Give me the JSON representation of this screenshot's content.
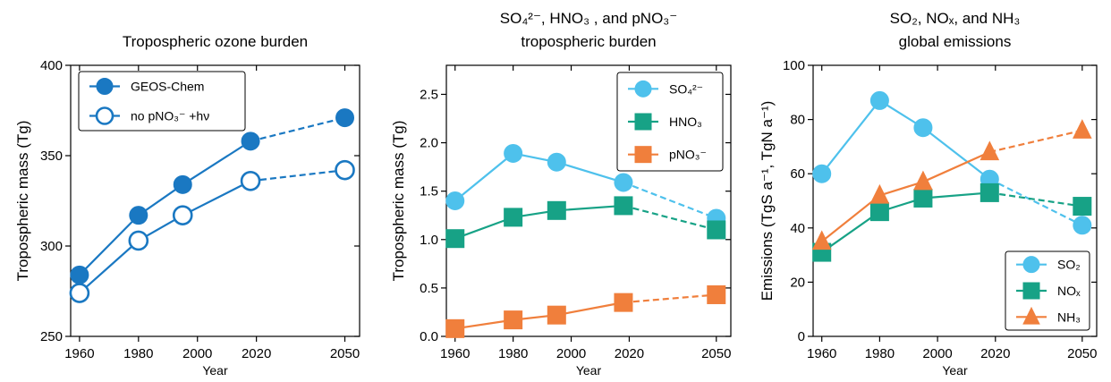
{
  "chart_data": [
    {
      "type": "line",
      "title": "Tropospheric ozone burden",
      "xlabel": "Year",
      "ylabel": "Tropospheric mass (Tg)",
      "xlim": [
        1957,
        2055
      ],
      "ylim": [
        250,
        400
      ],
      "xticks": [
        1960,
        1980,
        2000,
        2020,
        2050
      ],
      "yticks": [
        250,
        300,
        350,
        400
      ],
      "legend_position": "top-left",
      "dash_from": 2018,
      "series": [
        {
          "name": "GEOS-Chem",
          "color": "#1a78c2",
          "marker": "circle",
          "filled": true,
          "x": [
            1960,
            1980,
            1995,
            2018,
            2050
          ],
          "y": [
            284,
            317,
            334,
            358,
            371
          ]
        },
        {
          "name": "no pNO₃⁻ +hν",
          "color": "#1a78c2",
          "marker": "circle",
          "filled": false,
          "x": [
            1960,
            1980,
            1995,
            2018,
            2050
          ],
          "y": [
            274,
            303,
            317,
            336,
            342
          ]
        }
      ]
    },
    {
      "type": "line",
      "title": "SO₄²⁻, HNO₃ , and pNO₃⁻",
      "subtitle": "tropospheric burden",
      "xlabel": "Year",
      "ylabel": "Tropospheric mass (Tg)",
      "xlim": [
        1957,
        2055
      ],
      "ylim": [
        0,
        2.8
      ],
      "xticks": [
        1960,
        1980,
        2000,
        2020,
        2050
      ],
      "yticks": [
        0.0,
        0.5,
        1.0,
        1.5,
        2.0,
        2.5
      ],
      "legend_position": "top-right",
      "dash_from": 2018,
      "series": [
        {
          "name": "SO₄²⁻",
          "color": "#4ec1ec",
          "marker": "circle",
          "x": [
            1960,
            1980,
            1995,
            2018,
            2050
          ],
          "y": [
            1.4,
            1.89,
            1.8,
            1.59,
            1.22
          ]
        },
        {
          "name": "HNO₃",
          "color": "#17a286",
          "marker": "square",
          "x": [
            1960,
            1980,
            1995,
            2018,
            2050
          ],
          "y": [
            1.01,
            1.23,
            1.3,
            1.35,
            1.1
          ]
        },
        {
          "name": "pNO₃⁻",
          "color": "#f07f3c",
          "marker": "square",
          "x": [
            1960,
            1980,
            1995,
            2018,
            2050
          ],
          "y": [
            0.08,
            0.17,
            0.22,
            0.35,
            0.43
          ]
        }
      ]
    },
    {
      "type": "line",
      "title": "SO₂, NOₓ, and NH₃",
      "subtitle": "global emissions",
      "xlabel": "Year",
      "ylabel": "Emissions (TgS a⁻¹, TgN a⁻¹)",
      "xlim": [
        1957,
        2055
      ],
      "ylim": [
        0,
        100
      ],
      "xticks": [
        1960,
        1980,
        2000,
        2020,
        2050
      ],
      "yticks": [
        0,
        20,
        40,
        60,
        80,
        100
      ],
      "legend_position": "bottom-right",
      "dash_from": 2018,
      "series": [
        {
          "name": "SO₂",
          "color": "#4ec1ec",
          "marker": "circle",
          "x": [
            1960,
            1980,
            1995,
            2018,
            2050
          ],
          "y": [
            60,
            87,
            77,
            58,
            41
          ]
        },
        {
          "name": "NOₓ",
          "color": "#17a286",
          "marker": "square",
          "x": [
            1960,
            1980,
            1995,
            2018,
            2050
          ],
          "y": [
            31,
            46,
            51,
            53,
            48
          ]
        },
        {
          "name": "NH₃",
          "color": "#f07f3c",
          "marker": "triangle",
          "x": [
            1960,
            1980,
            1995,
            2018,
            2050
          ],
          "y": [
            35,
            52,
            57,
            68,
            76
          ]
        }
      ]
    }
  ]
}
